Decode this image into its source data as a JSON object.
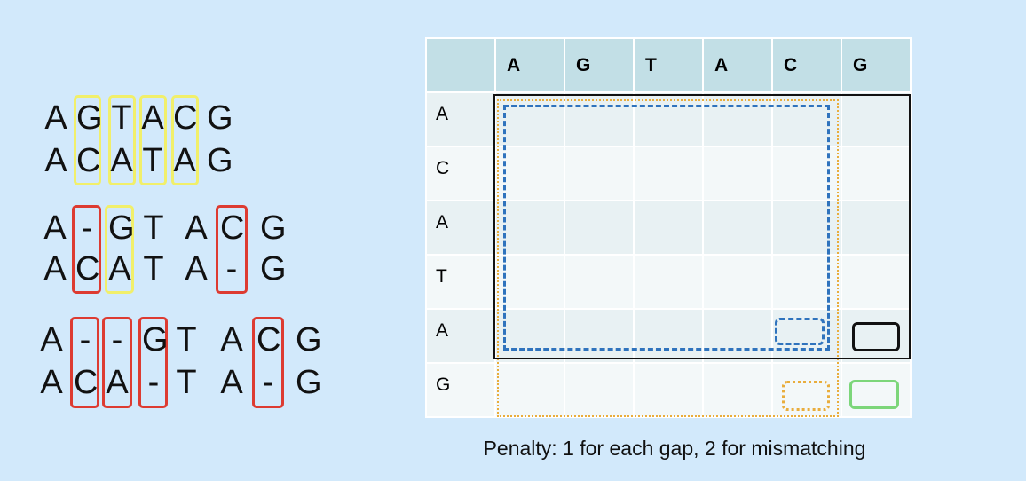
{
  "alignment_1": {
    "top": [
      "A",
      "G",
      "T",
      "A",
      "C",
      "G"
    ],
    "bottom": [
      "A",
      "C",
      "A",
      "T",
      "A",
      "G"
    ]
  },
  "alignment_2": {
    "top": [
      "A",
      "-",
      "G",
      "T",
      "A",
      "C",
      "G"
    ],
    "bottom": [
      "A",
      "C",
      "A",
      "T",
      "A",
      "-",
      "G"
    ]
  },
  "alignment_3": {
    "top": [
      "A",
      "-",
      "-",
      "G",
      "T",
      "A",
      "C",
      "G"
    ],
    "bottom": [
      "A",
      "C",
      "A",
      "-",
      "T",
      "A",
      "-",
      "G"
    ]
  },
  "matrix": {
    "columns": [
      "A",
      "G",
      "T",
      "A",
      "C",
      "G"
    ],
    "rows": [
      "A",
      "C",
      "A",
      "T",
      "A",
      "G"
    ]
  },
  "colors": {
    "match_box": "#f1ef6a",
    "mismatch_gap_box": "#dd3b31",
    "blue_dashed": "#2f73bd",
    "orange_dotted": "#e9ad3c",
    "green": "#7cd67a",
    "black": "#111111"
  },
  "caption": "Penalty: 1 for each gap, 2 for mismatching"
}
